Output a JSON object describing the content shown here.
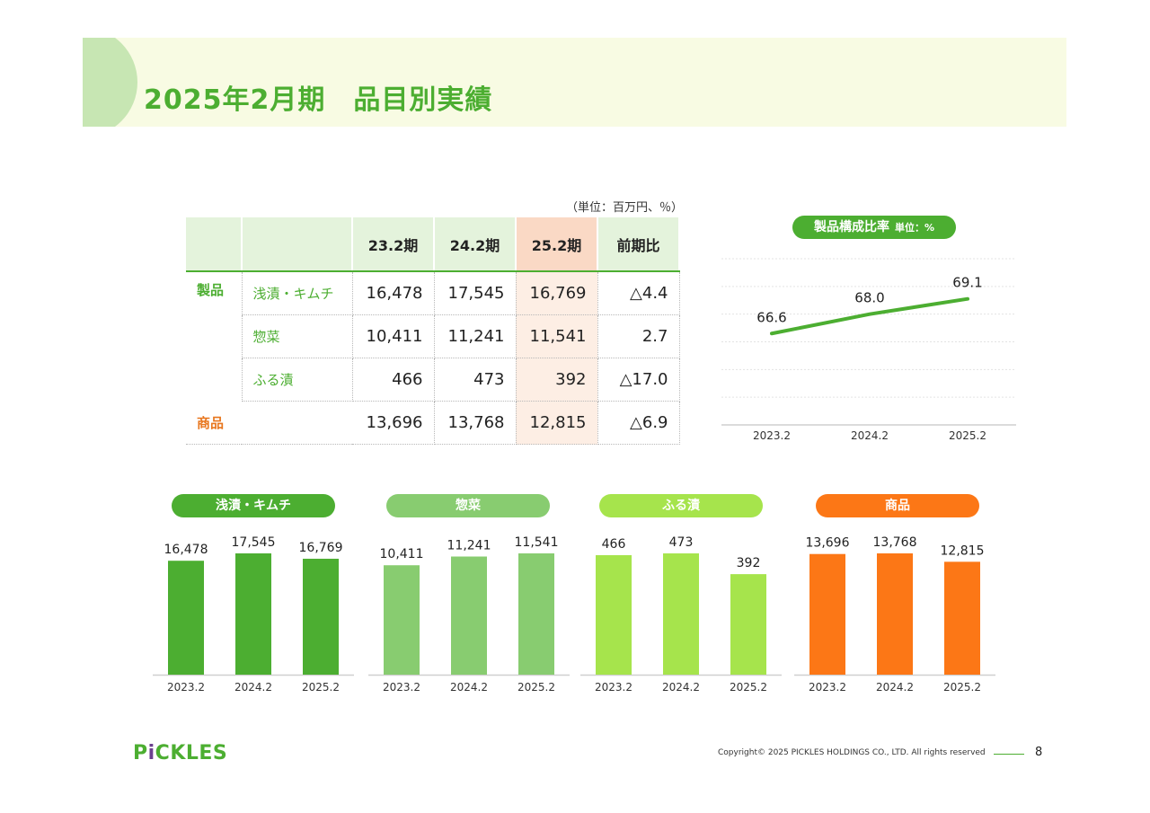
{
  "page": {
    "title": "2025年2月期　品目別実績",
    "unit_note": "（単位：百万円、％）",
    "logo": {
      "pre": "P",
      "mark": "i",
      "post": "CKLES"
    },
    "copyright": "Copyright© 2025 PICKLES HOLDINGS CO., LTD. All rights reserved",
    "page_number": "8"
  },
  "colors": {
    "green_dark": "#4cae31",
    "green_mid": "#88cc70",
    "green_light": "#a6e44c",
    "orange": "#fc7716",
    "highlight": "#fad9c5"
  },
  "table": {
    "headers": [
      "",
      "",
      "23.2期",
      "24.2期",
      "25.2期",
      "前期比"
    ],
    "group_product": "製品",
    "rows": [
      {
        "label": "浅漬・キムチ",
        "values": [
          "16,478",
          "17,545",
          "16,769",
          "△4.4"
        ]
      },
      {
        "label": "惣菜",
        "values": [
          "10,411",
          "11,241",
          "11,541",
          "2.7"
        ]
      },
      {
        "label": "ふる漬",
        "values": [
          "466",
          "473",
          "392",
          "△17.0"
        ]
      }
    ],
    "merch": {
      "label": "商品",
      "values": [
        "13,696",
        "13,768",
        "12,815",
        "△6.9"
      ]
    }
  },
  "chart_data": [
    {
      "type": "line",
      "title": "製品構成比率",
      "unit": "単位：%",
      "x": [
        "2023.2",
        "2024.2",
        "2025.2"
      ],
      "values": [
        66.6,
        68.0,
        69.1
      ],
      "labels": [
        "66.6",
        "68.0",
        "69.1"
      ],
      "ylim": [
        60,
        72
      ],
      "grid": true,
      "color": "#4cae31"
    },
    {
      "type": "bar",
      "title": "浅漬・キムチ",
      "categories": [
        "2023.2",
        "2024.2",
        "2025.2"
      ],
      "values": [
        16478,
        17545,
        16769
      ],
      "labels": [
        "16,478",
        "17,545",
        "16,769"
      ],
      "color": "#4cae31"
    },
    {
      "type": "bar",
      "title": "惣菜",
      "categories": [
        "2023.2",
        "2024.2",
        "2025.2"
      ],
      "values": [
        10411,
        11241,
        11541
      ],
      "labels": [
        "10,411",
        "11,241",
        "11,541"
      ],
      "color": "#88cc70"
    },
    {
      "type": "bar",
      "title": "ふる漬",
      "categories": [
        "2023.2",
        "2024.2",
        "2025.2"
      ],
      "values": [
        466,
        473,
        392
      ],
      "labels": [
        "466",
        "473",
        "392"
      ],
      "color": "#a6e44c"
    },
    {
      "type": "bar",
      "title": "商品",
      "categories": [
        "2023.2",
        "2024.2",
        "2025.2"
      ],
      "values": [
        13696,
        13768,
        12815
      ],
      "labels": [
        "13,696",
        "13,768",
        "12,815"
      ],
      "color": "#fc7716"
    }
  ]
}
